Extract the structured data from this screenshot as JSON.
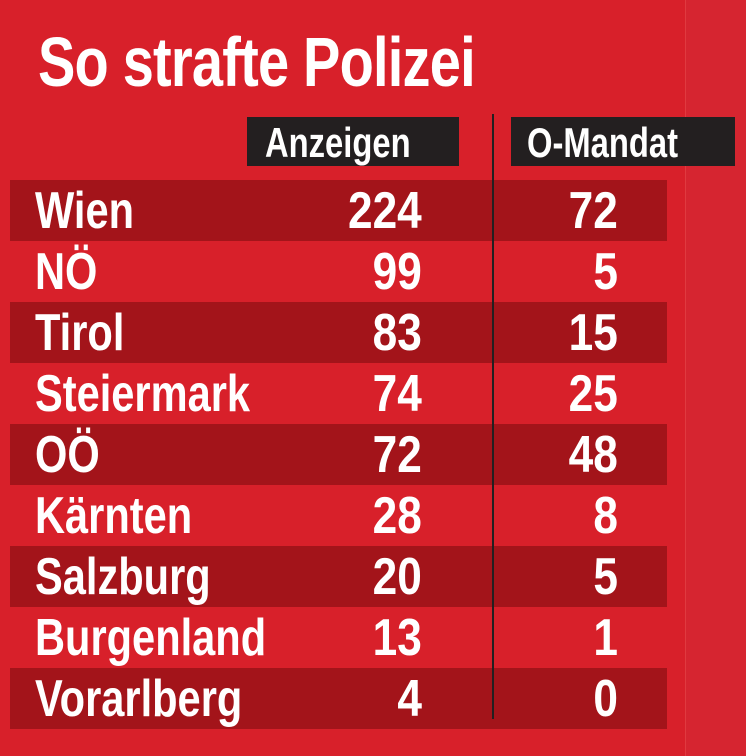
{
  "title": "So strafte Polizei",
  "colors": {
    "background": "#d8202a",
    "stripe": "#a3141a",
    "header": "#231f20"
  },
  "chart_data": {
    "type": "table",
    "title": "So strafte Polizei",
    "columns": [
      "Anzeigen",
      "O-Mandat"
    ],
    "rows": [
      {
        "label": "Wien",
        "values": [
          224,
          72
        ]
      },
      {
        "label": "NÖ",
        "values": [
          99,
          5
        ]
      },
      {
        "label": "Tirol",
        "values": [
          83,
          15
        ]
      },
      {
        "label": "Steiermark",
        "values": [
          74,
          25
        ]
      },
      {
        "label": "OÖ",
        "values": [
          72,
          48
        ]
      },
      {
        "label": "Kärnten",
        "values": [
          28,
          8
        ]
      },
      {
        "label": "Salzburg",
        "values": [
          20,
          5
        ]
      },
      {
        "label": "Burgenland",
        "values": [
          13,
          1
        ]
      },
      {
        "label": "Vorarlberg",
        "values": [
          4,
          0
        ]
      }
    ]
  }
}
